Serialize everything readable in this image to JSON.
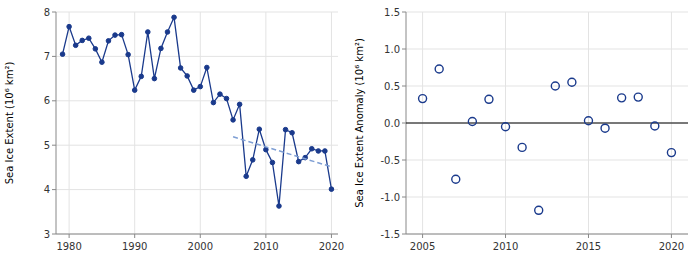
{
  "chart_data": [
    {
      "type": "line",
      "x": [
        1979,
        1980,
        1981,
        1982,
        1983,
        1984,
        1985,
        1986,
        1987,
        1988,
        1989,
        1990,
        1991,
        1992,
        1993,
        1994,
        1995,
        1996,
        1997,
        1998,
        1999,
        2000,
        2001,
        2002,
        2003,
        2004,
        2005,
        2006,
        2007,
        2008,
        2009,
        2010,
        2011,
        2012,
        2013,
        2014,
        2015,
        2016,
        2017,
        2018,
        2019,
        2020
      ],
      "series": [
        {
          "values": [
            7.05,
            7.67,
            7.25,
            7.36,
            7.41,
            7.17,
            6.87,
            7.35,
            7.48,
            7.49,
            7.04,
            6.24,
            6.55,
            7.55,
            6.5,
            7.18,
            7.55,
            7.88,
            6.74,
            6.56,
            6.24,
            6.32,
            6.75,
            5.96,
            6.15,
            6.05,
            5.57,
            5.92,
            4.3,
            4.67,
            5.36,
            4.9,
            4.61,
            3.63,
            5.35,
            5.28,
            4.63,
            4.72,
            4.92,
            4.87,
            4.87,
            4.01
          ],
          "color": "#1a3a8c",
          "marker": "circle",
          "line_style": "solid"
        },
        {
          "x": [
            2005,
            2020
          ],
          "values": [
            5.1885,
            4.5128
          ],
          "color": "#7f9fd4",
          "line_style": "dashed"
        }
      ],
      "y_label": "Sea Ice Extent (10⁶ km²)",
      "xlim": [
        1978,
        2021
      ],
      "xticks": [
        1980,
        1990,
        2000,
        2010,
        2020
      ],
      "ylim": [
        3,
        8
      ],
      "yticks": [
        3,
        4,
        5,
        6,
        7,
        8
      ],
      "grid": true
    },
    {
      "type": "scatter",
      "x": [
        2005,
        2006,
        2007,
        2008,
        2009,
        2010,
        2011,
        2012,
        2013,
        2014,
        2015,
        2016,
        2017,
        2018,
        2019,
        2020
      ],
      "values": [
        0.33,
        0.73,
        -0.76,
        0.02,
        0.32,
        -0.05,
        -0.33,
        -1.18,
        0.5,
        0.55,
        0.03,
        -0.07,
        0.34,
        0.35,
        -0.04,
        -0.4
      ],
      "color": "#1a3a8c",
      "marker": "circle-open",
      "hline": 0,
      "y_label": "Sea Ice Extent Anomaly (10⁶ km²)",
      "xlim": [
        2004,
        2021
      ],
      "xticks": [
        2005,
        2010,
        2015,
        2020
      ],
      "ylim": [
        -1.5,
        1.5
      ],
      "yticks": [
        -1.5,
        {
          "value": -1.0,
          "label": "-1.0"
        },
        -0.5,
        {
          "value": 0.0,
          "label": "0.0"
        },
        0.5,
        {
          "value": 1.0,
          "label": "1.0"
        },
        1.5
      ],
      "grid": true
    }
  ]
}
